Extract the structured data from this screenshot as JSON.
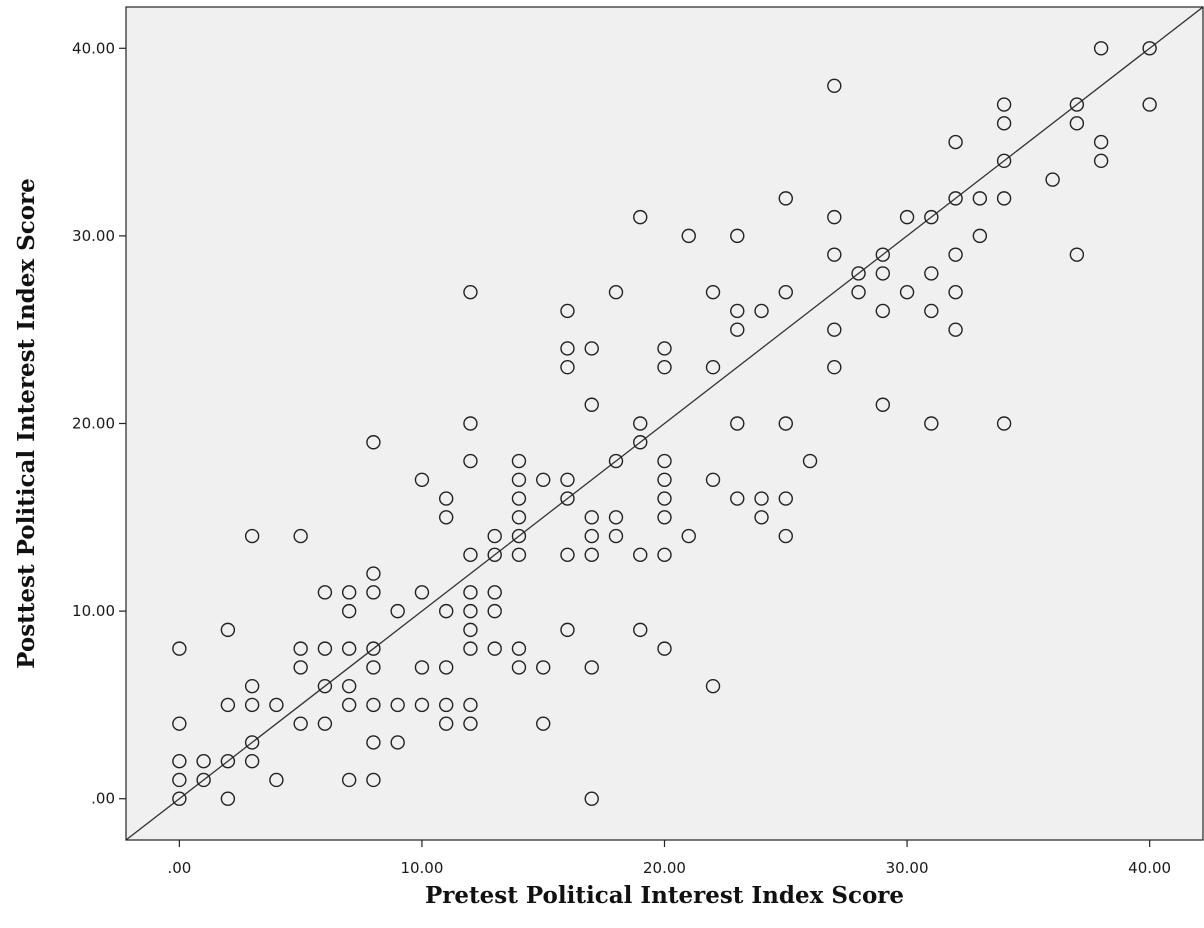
{
  "chart_data": {
    "type": "scatter",
    "title": "",
    "xlabel": "Pretest Political Interest Index Score",
    "ylabel": "Posttest Political Interest Index Score",
    "xlim": [
      -2.2,
      42.2
    ],
    "ylim": [
      -2.2,
      42.2
    ],
    "x_ticks": [
      0,
      10,
      20,
      30,
      40
    ],
    "y_ticks": [
      0,
      10,
      20,
      30,
      40
    ],
    "x_tick_labels": [
      ".00",
      "10.00",
      "20.00",
      "30.00",
      "40.00"
    ],
    "y_tick_labels": [
      ".00",
      "10.00",
      "20.00",
      "30.00",
      "40.00"
    ],
    "grid": false,
    "legend": "none",
    "plot_background": "#f0f0f0",
    "marker": "open-circle",
    "fit_line": {
      "slope": 1,
      "intercept": 0
    },
    "points": [
      [
        0,
        0
      ],
      [
        0,
        1
      ],
      [
        0,
        2
      ],
      [
        0,
        4
      ],
      [
        0,
        8
      ],
      [
        1,
        1
      ],
      [
        1,
        2
      ],
      [
        2,
        0
      ],
      [
        2,
        2
      ],
      [
        2,
        5
      ],
      [
        2,
        9
      ],
      [
        3,
        2
      ],
      [
        3,
        3
      ],
      [
        3,
        5
      ],
      [
        3,
        6
      ],
      [
        3,
        14
      ],
      [
        4,
        1
      ],
      [
        4,
        5
      ],
      [
        5,
        4
      ],
      [
        5,
        7
      ],
      [
        5,
        8
      ],
      [
        5,
        14
      ],
      [
        6,
        4
      ],
      [
        6,
        6
      ],
      [
        6,
        8
      ],
      [
        6,
        11
      ],
      [
        7,
        1
      ],
      [
        7,
        5
      ],
      [
        7,
        6
      ],
      [
        7,
        8
      ],
      [
        7,
        10
      ],
      [
        7,
        11
      ],
      [
        8,
        1
      ],
      [
        8,
        3
      ],
      [
        8,
        5
      ],
      [
        8,
        7
      ],
      [
        8,
        8
      ],
      [
        8,
        11
      ],
      [
        8,
        12
      ],
      [
        8,
        19
      ],
      [
        9,
        3
      ],
      [
        9,
        5
      ],
      [
        9,
        10
      ],
      [
        10,
        5
      ],
      [
        10,
        7
      ],
      [
        10,
        11
      ],
      [
        10,
        17
      ],
      [
        11,
        4
      ],
      [
        11,
        5
      ],
      [
        11,
        7
      ],
      [
        11,
        10
      ],
      [
        11,
        15
      ],
      [
        11,
        16
      ],
      [
        12,
        4
      ],
      [
        12,
        5
      ],
      [
        12,
        8
      ],
      [
        12,
        9
      ],
      [
        12,
        10
      ],
      [
        12,
        11
      ],
      [
        12,
        13
      ],
      [
        12,
        18
      ],
      [
        12,
        20
      ],
      [
        12,
        27
      ],
      [
        13,
        8
      ],
      [
        13,
        10
      ],
      [
        13,
        11
      ],
      [
        13,
        13
      ],
      [
        13,
        14
      ],
      [
        14,
        7
      ],
      [
        14,
        8
      ],
      [
        14,
        13
      ],
      [
        14,
        14
      ],
      [
        14,
        15
      ],
      [
        14,
        16
      ],
      [
        14,
        17
      ],
      [
        14,
        18
      ],
      [
        15,
        4
      ],
      [
        15,
        7
      ],
      [
        15,
        17
      ],
      [
        16,
        9
      ],
      [
        16,
        13
      ],
      [
        16,
        16
      ],
      [
        16,
        17
      ],
      [
        16,
        23
      ],
      [
        16,
        24
      ],
      [
        16,
        26
      ],
      [
        17,
        0
      ],
      [
        17,
        7
      ],
      [
        17,
        13
      ],
      [
        17,
        14
      ],
      [
        17,
        15
      ],
      [
        17,
        21
      ],
      [
        17,
        24
      ],
      [
        18,
        14
      ],
      [
        18,
        15
      ],
      [
        18,
        18
      ],
      [
        18,
        27
      ],
      [
        19,
        9
      ],
      [
        19,
        13
      ],
      [
        19,
        19
      ],
      [
        19,
        20
      ],
      [
        19,
        31
      ],
      [
        20,
        8
      ],
      [
        20,
        13
      ],
      [
        20,
        15
      ],
      [
        20,
        16
      ],
      [
        20,
        17
      ],
      [
        20,
        18
      ],
      [
        20,
        23
      ],
      [
        20,
        24
      ],
      [
        21,
        14
      ],
      [
        21,
        30
      ],
      [
        22,
        6
      ],
      [
        22,
        17
      ],
      [
        22,
        23
      ],
      [
        22,
        27
      ],
      [
        23,
        16
      ],
      [
        23,
        20
      ],
      [
        23,
        25
      ],
      [
        23,
        26
      ],
      [
        23,
        30
      ],
      [
        24,
        15
      ],
      [
        24,
        16
      ],
      [
        24,
        26
      ],
      [
        25,
        14
      ],
      [
        25,
        16
      ],
      [
        25,
        20
      ],
      [
        25,
        27
      ],
      [
        25,
        32
      ],
      [
        26,
        18
      ],
      [
        27,
        23
      ],
      [
        27,
        25
      ],
      [
        27,
        29
      ],
      [
        27,
        31
      ],
      [
        27,
        38
      ],
      [
        28,
        27
      ],
      [
        28,
        28
      ],
      [
        29,
        21
      ],
      [
        29,
        26
      ],
      [
        29,
        28
      ],
      [
        29,
        29
      ],
      [
        30,
        27
      ],
      [
        30,
        31
      ],
      [
        31,
        20
      ],
      [
        31,
        26
      ],
      [
        31,
        28
      ],
      [
        31,
        31
      ],
      [
        32,
        25
      ],
      [
        32,
        27
      ],
      [
        32,
        29
      ],
      [
        32,
        32
      ],
      [
        32,
        35
      ],
      [
        33,
        30
      ],
      [
        33,
        32
      ],
      [
        34,
        20
      ],
      [
        34,
        32
      ],
      [
        34,
        34
      ],
      [
        34,
        36
      ],
      [
        34,
        37
      ],
      [
        36,
        33
      ],
      [
        37,
        29
      ],
      [
        37,
        36
      ],
      [
        37,
        37
      ],
      [
        38,
        34
      ],
      [
        38,
        35
      ],
      [
        38,
        40
      ],
      [
        40,
        37
      ],
      [
        40,
        40
      ]
    ]
  }
}
